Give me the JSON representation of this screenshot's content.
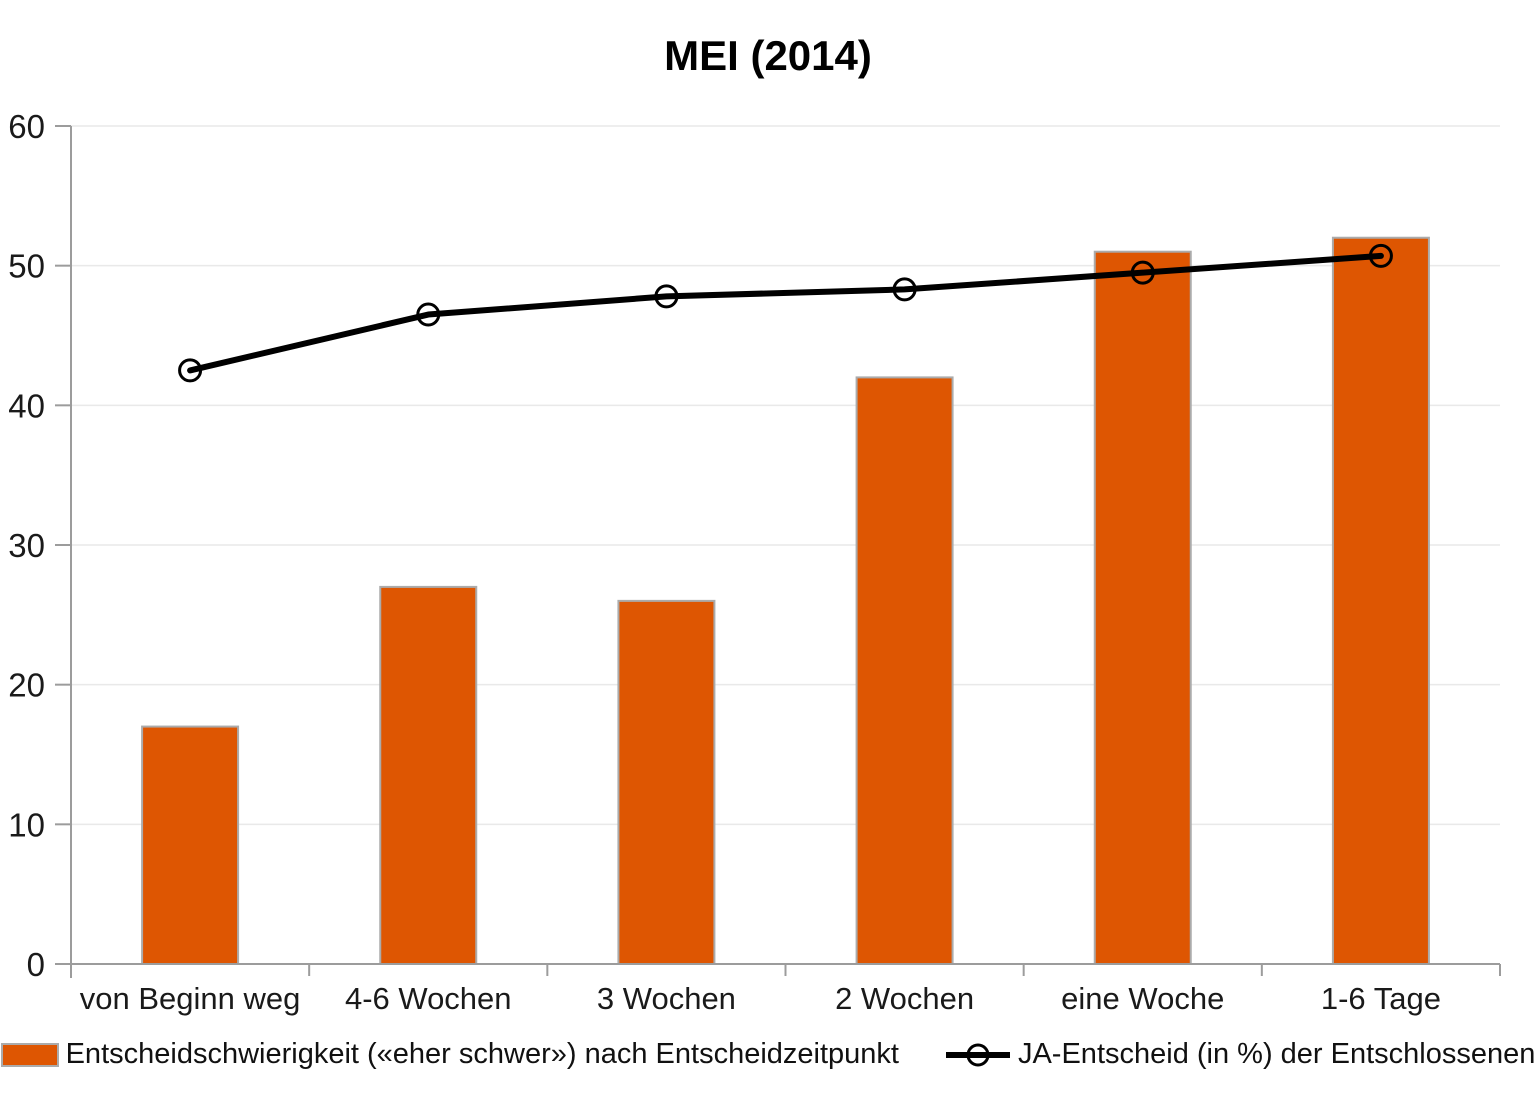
{
  "chart_data": {
    "type": "combo",
    "title": "MEI (2014)",
    "categories": [
      "von Beginn weg",
      "4-6 Wochen",
      "3 Wochen",
      "2 Wochen",
      "eine Woche",
      "1-6 Tage"
    ],
    "series": [
      {
        "name": "Entscheidschwierigkeit («eher schwer») nach Entscheidzeitpunkt",
        "type": "bar",
        "values": [
          17,
          27,
          26,
          42,
          51,
          52
        ]
      },
      {
        "name": "JA-Entscheid (in %) der Entschlossenen",
        "type": "line",
        "marker": "open-circle",
        "values": [
          42.5,
          46.5,
          47.8,
          48.3,
          49.5,
          50.7
        ]
      }
    ],
    "xlabel": "",
    "ylabel": "",
    "ylim": [
      0,
      60
    ],
    "ytick_step": 10,
    "ytick_labels": [
      "0",
      "10",
      "20",
      "30",
      "40",
      "50",
      "60"
    ],
    "grid": "horizontal",
    "legend_position": "bottom"
  },
  "colors": {
    "bar_fill": "#DE5602",
    "bar_border": "#ABABAB",
    "line": "#000000",
    "axis": "#9C9C9C",
    "gridline": "#E9E9E9",
    "tick_text": "#1A1A1A",
    "background": "#FFFFFF"
  }
}
